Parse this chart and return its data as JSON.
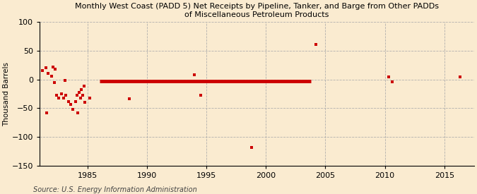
{
  "title": "Monthly West Coast (PADD 5) Net Receipts by Pipeline, Tanker, and Barge from Other PADDs\nof Miscellaneous Petroleum Products",
  "ylabel": "Thousand Barrels",
  "source": "Source: U.S. Energy Information Administration",
  "background_color": "#faebd0",
  "plot_bg_color": "#faebd0",
  "scatter_color": "#cc0000",
  "line_color": "#cc0000",
  "xlim": [
    1981.0,
    2017.5
  ],
  "ylim": [
    -150,
    100
  ],
  "yticks": [
    -150,
    -100,
    -50,
    0,
    50,
    100
  ],
  "xticks": [
    1985,
    1990,
    1995,
    2000,
    2005,
    2010,
    2015
  ],
  "scatter_x": [
    1981.2,
    1981.5,
    1981.7,
    1982.0,
    1982.2,
    1982.4,
    1982.6,
    1982.8,
    1983.0,
    1983.2,
    1983.4,
    1983.6,
    1983.8,
    1984.0,
    1984.1,
    1984.3,
    1984.4,
    1984.5,
    1984.6,
    1984.7,
    1984.8,
    1981.6,
    1982.1,
    1982.3,
    1983.1,
    1984.2,
    1985.2,
    1988.5,
    1994.0,
    1994.5,
    1998.8,
    2004.2,
    2010.3,
    2010.6,
    2016.3
  ],
  "scatter_y": [
    15,
    20,
    10,
    5,
    -5,
    -28,
    -32,
    -25,
    -32,
    -27,
    -38,
    -43,
    -52,
    -38,
    -28,
    -22,
    -32,
    -18,
    -28,
    -12,
    -40,
    -58,
    22,
    18,
    -2,
    -58,
    -32,
    -33,
    8,
    -28,
    -118,
    60,
    4,
    -4,
    4
  ],
  "line_x_start": 1986.0,
  "line_x_end": 2003.8,
  "line_y": -3,
  "line_width": 3.5
}
